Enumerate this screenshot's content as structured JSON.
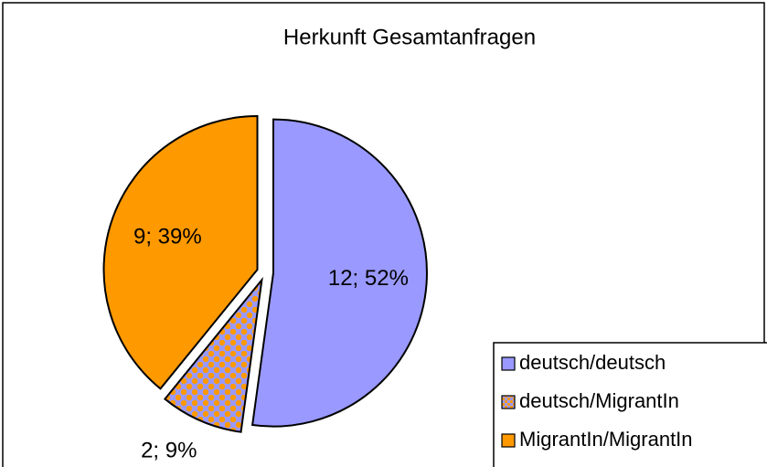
{
  "chart_data": {
    "type": "pie",
    "title": "Herkunft Gesamtanfragen",
    "categories": [
      "deutsch/deutsch",
      "deutsch/MigrantIn",
      "MigrantIn/MigrantIn"
    ],
    "values": [
      12,
      2,
      9
    ],
    "value_labels": [
      "12; 52%",
      "2; 9%",
      "9; 39%"
    ],
    "colors": [
      "#9999ff",
      "#9999ff",
      "#ff9900"
    ],
    "hatch": [
      false,
      true,
      false
    ],
    "legend": "bottom-right"
  }
}
